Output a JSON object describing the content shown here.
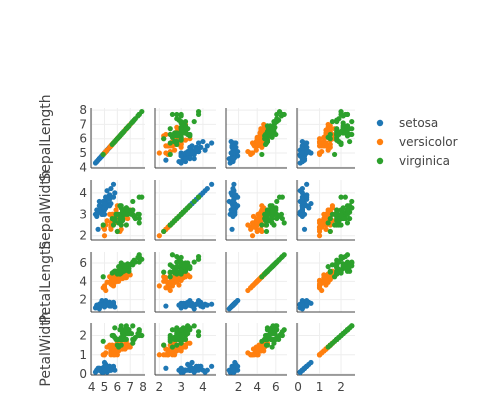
{
  "chart_data": {
    "type": "scatter-matrix",
    "dimensions": [
      "SepalLength",
      "SepalWidth",
      "PetalLength",
      "PetalWidth"
    ],
    "axis_ticks": [
      [
        4,
        5,
        6,
        7,
        8
      ],
      [
        2,
        3,
        4
      ],
      [
        2,
        4,
        6
      ],
      [
        0,
        1,
        2
      ]
    ],
    "axis_ranges": [
      [
        3.95,
        8.15
      ],
      [
        1.8,
        4.6
      ],
      [
        0.65,
        7.2
      ],
      [
        -0.05,
        2.65
      ]
    ],
    "grid": true,
    "legend_placement": "top-right",
    "series": [
      {
        "name": "setosa",
        "color": "#1f77b4",
        "points": [
          [
            5.1,
            3.5,
            1.4,
            0.2
          ],
          [
            4.9,
            3.0,
            1.4,
            0.2
          ],
          [
            4.7,
            3.2,
            1.3,
            0.2
          ],
          [
            4.6,
            3.1,
            1.5,
            0.2
          ],
          [
            5.0,
            3.6,
            1.4,
            0.2
          ],
          [
            5.4,
            3.9,
            1.7,
            0.4
          ],
          [
            4.6,
            3.4,
            1.4,
            0.3
          ],
          [
            5.0,
            3.4,
            1.5,
            0.2
          ],
          [
            4.4,
            2.9,
            1.4,
            0.2
          ],
          [
            4.9,
            3.1,
            1.5,
            0.1
          ],
          [
            5.4,
            3.7,
            1.5,
            0.2
          ],
          [
            4.8,
            3.4,
            1.6,
            0.2
          ],
          [
            4.8,
            3.0,
            1.4,
            0.1
          ],
          [
            4.3,
            3.0,
            1.1,
            0.1
          ],
          [
            5.8,
            4.0,
            1.2,
            0.2
          ],
          [
            5.7,
            4.4,
            1.5,
            0.4
          ],
          [
            5.4,
            3.9,
            1.3,
            0.4
          ],
          [
            5.1,
            3.5,
            1.4,
            0.3
          ],
          [
            5.7,
            3.8,
            1.7,
            0.3
          ],
          [
            5.1,
            3.8,
            1.5,
            0.3
          ],
          [
            5.4,
            3.4,
            1.7,
            0.2
          ],
          [
            5.1,
            3.7,
            1.5,
            0.4
          ],
          [
            4.6,
            3.6,
            1.0,
            0.2
          ],
          [
            5.1,
            3.3,
            1.7,
            0.5
          ],
          [
            4.8,
            3.4,
            1.9,
            0.2
          ],
          [
            5.0,
            3.0,
            1.6,
            0.2
          ],
          [
            5.0,
            3.4,
            1.6,
            0.4
          ],
          [
            5.2,
            3.5,
            1.5,
            0.2
          ],
          [
            5.2,
            3.4,
            1.4,
            0.2
          ],
          [
            4.7,
            3.2,
            1.6,
            0.2
          ],
          [
            4.8,
            3.1,
            1.6,
            0.2
          ],
          [
            5.4,
            3.4,
            1.5,
            0.4
          ],
          [
            5.2,
            4.1,
            1.5,
            0.1
          ],
          [
            5.5,
            4.2,
            1.4,
            0.2
          ],
          [
            4.9,
            3.1,
            1.5,
            0.2
          ],
          [
            5.0,
            3.2,
            1.2,
            0.2
          ],
          [
            5.5,
            3.5,
            1.3,
            0.2
          ],
          [
            4.9,
            3.6,
            1.4,
            0.1
          ],
          [
            4.4,
            3.0,
            1.3,
            0.2
          ],
          [
            5.1,
            3.4,
            1.5,
            0.2
          ],
          [
            5.0,
            3.5,
            1.3,
            0.3
          ],
          [
            4.5,
            2.3,
            1.3,
            0.3
          ],
          [
            4.4,
            3.2,
            1.3,
            0.2
          ],
          [
            5.0,
            3.5,
            1.6,
            0.6
          ],
          [
            5.1,
            3.8,
            1.9,
            0.4
          ],
          [
            4.8,
            3.0,
            1.4,
            0.3
          ],
          [
            5.1,
            3.8,
            1.6,
            0.2
          ],
          [
            4.6,
            3.2,
            1.4,
            0.2
          ],
          [
            5.3,
            3.7,
            1.5,
            0.2
          ],
          [
            5.0,
            3.3,
            1.4,
            0.2
          ]
        ]
      },
      {
        "name": "versicolor",
        "color": "#ff7f0e",
        "points": [
          [
            7.0,
            3.2,
            4.7,
            1.4
          ],
          [
            6.4,
            3.2,
            4.5,
            1.5
          ],
          [
            6.9,
            3.1,
            4.9,
            1.5
          ],
          [
            5.5,
            2.3,
            4.0,
            1.3
          ],
          [
            6.5,
            2.8,
            4.6,
            1.5
          ],
          [
            5.7,
            2.8,
            4.5,
            1.3
          ],
          [
            6.3,
            3.3,
            4.7,
            1.6
          ],
          [
            4.9,
            2.4,
            3.3,
            1.0
          ],
          [
            6.6,
            2.9,
            4.6,
            1.3
          ],
          [
            5.2,
            2.7,
            3.9,
            1.4
          ],
          [
            5.0,
            2.0,
            3.5,
            1.0
          ],
          [
            5.9,
            3.0,
            4.2,
            1.5
          ],
          [
            6.0,
            2.2,
            4.0,
            1.0
          ],
          [
            6.1,
            2.9,
            4.7,
            1.4
          ],
          [
            5.6,
            2.9,
            3.6,
            1.3
          ],
          [
            6.7,
            3.1,
            4.4,
            1.4
          ],
          [
            5.6,
            3.0,
            4.5,
            1.5
          ],
          [
            5.8,
            2.7,
            4.1,
            1.0
          ],
          [
            6.2,
            2.2,
            4.5,
            1.5
          ],
          [
            5.6,
            2.5,
            3.9,
            1.1
          ],
          [
            5.9,
            3.2,
            4.8,
            1.8
          ],
          [
            6.1,
            2.8,
            4.0,
            1.3
          ],
          [
            6.3,
            2.5,
            4.9,
            1.5
          ],
          [
            6.1,
            2.8,
            4.7,
            1.2
          ],
          [
            6.4,
            2.9,
            4.3,
            1.3
          ],
          [
            6.6,
            3.0,
            4.4,
            1.4
          ],
          [
            6.8,
            2.8,
            4.8,
            1.4
          ],
          [
            6.7,
            3.0,
            5.0,
            1.7
          ],
          [
            6.0,
            2.9,
            4.5,
            1.5
          ],
          [
            5.7,
            2.6,
            3.5,
            1.0
          ],
          [
            5.5,
            2.4,
            3.8,
            1.1
          ],
          [
            5.5,
            2.4,
            3.7,
            1.0
          ],
          [
            5.8,
            2.7,
            3.9,
            1.2
          ],
          [
            6.0,
            2.7,
            5.1,
            1.6
          ],
          [
            5.4,
            3.0,
            4.5,
            1.5
          ],
          [
            6.0,
            3.4,
            4.5,
            1.6
          ],
          [
            6.7,
            3.1,
            4.7,
            1.5
          ],
          [
            6.3,
            2.3,
            4.4,
            1.3
          ],
          [
            5.6,
            3.0,
            4.1,
            1.3
          ],
          [
            5.5,
            2.5,
            4.0,
            1.3
          ],
          [
            5.5,
            2.6,
            4.4,
            1.2
          ],
          [
            6.1,
            3.0,
            4.6,
            1.4
          ],
          [
            5.8,
            2.6,
            4.0,
            1.2
          ],
          [
            5.0,
            2.3,
            3.3,
            1.0
          ],
          [
            5.6,
            2.7,
            4.2,
            1.3
          ],
          [
            5.7,
            3.0,
            4.2,
            1.2
          ],
          [
            5.7,
            2.9,
            4.2,
            1.3
          ],
          [
            6.2,
            2.9,
            4.3,
            1.3
          ],
          [
            5.1,
            2.5,
            3.0,
            1.1
          ],
          [
            5.7,
            2.8,
            4.1,
            1.3
          ]
        ]
      },
      {
        "name": "virginica",
        "color": "#2ca02c",
        "points": [
          [
            6.3,
            3.3,
            6.0,
            2.5
          ],
          [
            5.8,
            2.7,
            5.1,
            1.9
          ],
          [
            7.1,
            3.0,
            5.9,
            2.1
          ],
          [
            6.3,
            2.9,
            5.6,
            1.8
          ],
          [
            6.5,
            3.0,
            5.8,
            2.2
          ],
          [
            7.6,
            3.0,
            6.6,
            2.1
          ],
          [
            4.9,
            2.5,
            4.5,
            1.7
          ],
          [
            7.3,
            2.9,
            6.3,
            1.8
          ],
          [
            6.7,
            2.5,
            5.8,
            1.8
          ],
          [
            7.2,
            3.6,
            6.1,
            2.5
          ],
          [
            6.5,
            3.2,
            5.1,
            2.0
          ],
          [
            6.4,
            2.7,
            5.3,
            1.9
          ],
          [
            6.8,
            3.0,
            5.5,
            2.1
          ],
          [
            5.7,
            2.5,
            5.0,
            2.0
          ],
          [
            5.8,
            2.8,
            5.1,
            2.4
          ],
          [
            6.4,
            3.2,
            5.3,
            2.3
          ],
          [
            6.5,
            3.0,
            5.5,
            1.8
          ],
          [
            7.7,
            3.8,
            6.7,
            2.2
          ],
          [
            7.7,
            2.6,
            6.9,
            2.3
          ],
          [
            6.0,
            2.2,
            5.0,
            1.5
          ],
          [
            6.9,
            3.2,
            5.7,
            2.3
          ],
          [
            5.6,
            2.8,
            4.9,
            2.0
          ],
          [
            7.7,
            2.8,
            6.7,
            2.0
          ],
          [
            6.3,
            2.7,
            4.9,
            1.8
          ],
          [
            6.7,
            3.3,
            5.7,
            2.1
          ],
          [
            7.2,
            3.2,
            6.0,
            1.8
          ],
          [
            6.2,
            2.8,
            4.8,
            1.8
          ],
          [
            6.1,
            3.0,
            4.9,
            1.8
          ],
          [
            6.4,
            2.8,
            5.6,
            2.1
          ],
          [
            7.2,
            3.0,
            5.8,
            1.6
          ],
          [
            7.4,
            2.8,
            6.1,
            1.9
          ],
          [
            7.9,
            3.8,
            6.4,
            2.0
          ],
          [
            6.4,
            2.8,
            5.6,
            2.2
          ],
          [
            6.3,
            2.8,
            5.1,
            1.5
          ],
          [
            6.1,
            2.6,
            5.6,
            1.4
          ],
          [
            7.7,
            3.0,
            6.1,
            2.3
          ],
          [
            6.3,
            3.4,
            5.6,
            2.4
          ],
          [
            6.4,
            3.1,
            5.5,
            1.8
          ],
          [
            6.0,
            3.0,
            4.8,
            1.8
          ],
          [
            6.9,
            3.1,
            5.4,
            2.1
          ],
          [
            6.7,
            3.1,
            5.6,
            2.4
          ],
          [
            6.9,
            3.1,
            5.1,
            2.3
          ],
          [
            5.8,
            2.7,
            5.1,
            1.9
          ],
          [
            6.8,
            3.2,
            5.9,
            2.3
          ],
          [
            6.7,
            3.3,
            5.7,
            2.5
          ],
          [
            6.7,
            3.0,
            5.2,
            2.3
          ],
          [
            6.3,
            2.5,
            5.0,
            1.9
          ],
          [
            6.5,
            3.0,
            5.2,
            2.0
          ],
          [
            6.2,
            3.4,
            5.4,
            2.3
          ],
          [
            5.9,
            3.0,
            5.1,
            1.8
          ]
        ]
      }
    ]
  }
}
